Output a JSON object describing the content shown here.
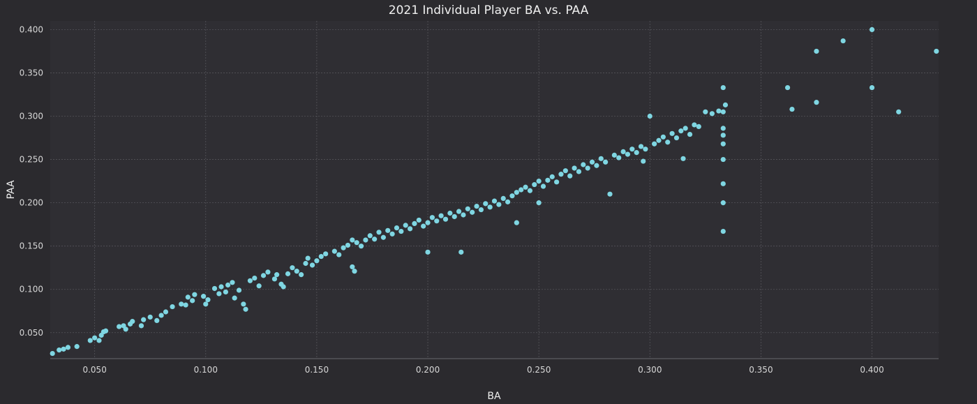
{
  "colors": {
    "background": "#2b2a2e",
    "plot_background": "#2f2e33",
    "point": "#7fd6e2",
    "grid": "#55545a",
    "text": "#f0f0f0"
  },
  "chart_data": {
    "type": "scatter",
    "title": "2021 Individual Player BA vs. PAA",
    "xlabel": "BA",
    "ylabel": "PAA",
    "xlim": [
      0.03,
      0.43
    ],
    "ylim": [
      0.02,
      0.41
    ],
    "grid": true,
    "legend": "none",
    "xticks": [
      "0.050",
      "0.100",
      "0.150",
      "0.200",
      "0.250",
      "0.300",
      "0.350",
      "0.400"
    ],
    "yticks": [
      "0.050",
      "0.100",
      "0.150",
      "0.200",
      "0.250",
      "0.300",
      "0.350",
      "0.400"
    ],
    "series": [
      {
        "points": [
          [
            0.031,
            0.026
          ],
          [
            0.034,
            0.03
          ],
          [
            0.036,
            0.031
          ],
          [
            0.038,
            0.033
          ],
          [
            0.042,
            0.034
          ],
          [
            0.048,
            0.041
          ],
          [
            0.05,
            0.044
          ],
          [
            0.052,
            0.041
          ],
          [
            0.053,
            0.047
          ],
          [
            0.054,
            0.051
          ],
          [
            0.055,
            0.052
          ],
          [
            0.061,
            0.057
          ],
          [
            0.063,
            0.058
          ],
          [
            0.064,
            0.054
          ],
          [
            0.066,
            0.06
          ],
          [
            0.067,
            0.063
          ],
          [
            0.071,
            0.058
          ],
          [
            0.072,
            0.065
          ],
          [
            0.075,
            0.068
          ],
          [
            0.078,
            0.064
          ],
          [
            0.08,
            0.07
          ],
          [
            0.082,
            0.074
          ],
          [
            0.085,
            0.08
          ],
          [
            0.089,
            0.083
          ],
          [
            0.091,
            0.082
          ],
          [
            0.092,
            0.091
          ],
          [
            0.094,
            0.087
          ],
          [
            0.095,
            0.094
          ],
          [
            0.099,
            0.092
          ],
          [
            0.1,
            0.083
          ],
          [
            0.101,
            0.088
          ],
          [
            0.104,
            0.101
          ],
          [
            0.106,
            0.095
          ],
          [
            0.107,
            0.103
          ],
          [
            0.109,
            0.097
          ],
          [
            0.11,
            0.105
          ],
          [
            0.112,
            0.108
          ],
          [
            0.113,
            0.09
          ],
          [
            0.115,
            0.099
          ],
          [
            0.117,
            0.083
          ],
          [
            0.118,
            0.077
          ],
          [
            0.12,
            0.11
          ],
          [
            0.122,
            0.113
          ],
          [
            0.124,
            0.104
          ],
          [
            0.126,
            0.116
          ],
          [
            0.128,
            0.12
          ],
          [
            0.131,
            0.112
          ],
          [
            0.132,
            0.117
          ],
          [
            0.134,
            0.106
          ],
          [
            0.135,
            0.103
          ],
          [
            0.137,
            0.118
          ],
          [
            0.139,
            0.125
          ],
          [
            0.141,
            0.121
          ],
          [
            0.143,
            0.117
          ],
          [
            0.145,
            0.13
          ],
          [
            0.146,
            0.136
          ],
          [
            0.148,
            0.128
          ],
          [
            0.15,
            0.133
          ],
          [
            0.152,
            0.138
          ],
          [
            0.154,
            0.141
          ],
          [
            0.158,
            0.144
          ],
          [
            0.16,
            0.14
          ],
          [
            0.162,
            0.148
          ],
          [
            0.164,
            0.151
          ],
          [
            0.166,
            0.157
          ],
          [
            0.166,
            0.126
          ],
          [
            0.167,
            0.121
          ],
          [
            0.168,
            0.154
          ],
          [
            0.17,
            0.15
          ],
          [
            0.172,
            0.157
          ],
          [
            0.174,
            0.162
          ],
          [
            0.176,
            0.158
          ],
          [
            0.178,
            0.166
          ],
          [
            0.18,
            0.16
          ],
          [
            0.182,
            0.168
          ],
          [
            0.184,
            0.164
          ],
          [
            0.186,
            0.171
          ],
          [
            0.188,
            0.167
          ],
          [
            0.19,
            0.174
          ],
          [
            0.192,
            0.17
          ],
          [
            0.194,
            0.176
          ],
          [
            0.196,
            0.18
          ],
          [
            0.198,
            0.173
          ],
          [
            0.2,
            0.177
          ],
          [
            0.2,
            0.143
          ],
          [
            0.202,
            0.183
          ],
          [
            0.204,
            0.179
          ],
          [
            0.206,
            0.185
          ],
          [
            0.208,
            0.181
          ],
          [
            0.21,
            0.188
          ],
          [
            0.212,
            0.184
          ],
          [
            0.214,
            0.19
          ],
          [
            0.215,
            0.143
          ],
          [
            0.216,
            0.186
          ],
          [
            0.218,
            0.193
          ],
          [
            0.22,
            0.189
          ],
          [
            0.222,
            0.196
          ],
          [
            0.224,
            0.192
          ],
          [
            0.226,
            0.199
          ],
          [
            0.228,
            0.195
          ],
          [
            0.23,
            0.202
          ],
          [
            0.232,
            0.198
          ],
          [
            0.234,
            0.205
          ],
          [
            0.236,
            0.201
          ],
          [
            0.238,
            0.208
          ],
          [
            0.24,
            0.212
          ],
          [
            0.24,
            0.177
          ],
          [
            0.242,
            0.215
          ],
          [
            0.244,
            0.218
          ],
          [
            0.246,
            0.214
          ],
          [
            0.248,
            0.221
          ],
          [
            0.25,
            0.225
          ],
          [
            0.25,
            0.2
          ],
          [
            0.252,
            0.219
          ],
          [
            0.254,
            0.226
          ],
          [
            0.256,
            0.23
          ],
          [
            0.258,
            0.224
          ],
          [
            0.26,
            0.233
          ],
          [
            0.262,
            0.237
          ],
          [
            0.264,
            0.231
          ],
          [
            0.266,
            0.24
          ],
          [
            0.268,
            0.236
          ],
          [
            0.27,
            0.244
          ],
          [
            0.272,
            0.24
          ],
          [
            0.274,
            0.247
          ],
          [
            0.276,
            0.243
          ],
          [
            0.278,
            0.251
          ],
          [
            0.28,
            0.247
          ],
          [
            0.282,
            0.21
          ],
          [
            0.284,
            0.255
          ],
          [
            0.286,
            0.252
          ],
          [
            0.288,
            0.259
          ],
          [
            0.29,
            0.256
          ],
          [
            0.292,
            0.262
          ],
          [
            0.294,
            0.258
          ],
          [
            0.296,
            0.265
          ],
          [
            0.297,
            0.248
          ],
          [
            0.298,
            0.262
          ],
          [
            0.3,
            0.3
          ],
          [
            0.302,
            0.268
          ],
          [
            0.304,
            0.272
          ],
          [
            0.306,
            0.276
          ],
          [
            0.308,
            0.27
          ],
          [
            0.31,
            0.28
          ],
          [
            0.312,
            0.275
          ],
          [
            0.314,
            0.283
          ],
          [
            0.315,
            0.251
          ],
          [
            0.316,
            0.286
          ],
          [
            0.318,
            0.279
          ],
          [
            0.32,
            0.29
          ],
          [
            0.322,
            0.288
          ],
          [
            0.325,
            0.305
          ],
          [
            0.328,
            0.303
          ],
          [
            0.331,
            0.306
          ],
          [
            0.333,
            0.333
          ],
          [
            0.333,
            0.305
          ],
          [
            0.333,
            0.286
          ],
          [
            0.333,
            0.278
          ],
          [
            0.333,
            0.268
          ],
          [
            0.333,
            0.25
          ],
          [
            0.333,
            0.222
          ],
          [
            0.333,
            0.2
          ],
          [
            0.333,
            0.167
          ],
          [
            0.334,
            0.313
          ],
          [
            0.362,
            0.333
          ],
          [
            0.364,
            0.308
          ],
          [
            0.375,
            0.375
          ],
          [
            0.375,
            0.316
          ],
          [
            0.387,
            0.387
          ],
          [
            0.4,
            0.4
          ],
          [
            0.4,
            0.333
          ],
          [
            0.412,
            0.305
          ],
          [
            0.429,
            0.375
          ]
        ]
      }
    ]
  }
}
